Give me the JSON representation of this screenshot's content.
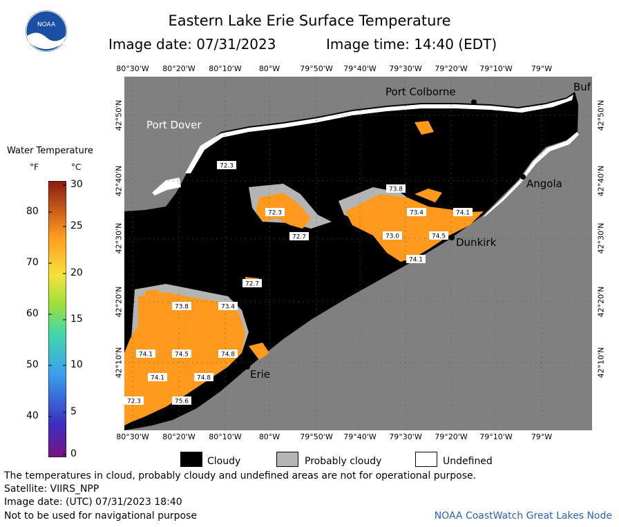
{
  "header": {
    "title": "Eastern Lake Erie Surface Temperature",
    "image_date": "Image date: 07/31/2023",
    "image_time": "Image time: 14:40 (EDT)",
    "logo_text": "NOAA"
  },
  "axes": {
    "lon_labels": [
      "80°30'W",
      "80°20'W",
      "80°10'W",
      "80°W",
      "79°50'W",
      "79°40'W",
      "79°30'W",
      "79°20'W",
      "79°10'W",
      "79°W"
    ],
    "lat_labels": [
      "42°50'N",
      "42°40'N",
      "42°30'N",
      "42°20'N",
      "42°10'N"
    ]
  },
  "legend": {
    "title": "Water Temperature",
    "unit_f": "°F",
    "unit_c": "°C",
    "f_ticks": [
      "80",
      "70",
      "60",
      "50",
      "40"
    ],
    "c_ticks": [
      "30",
      "25",
      "20",
      "15",
      "10",
      "5",
      "0"
    ],
    "keys": [
      "Cloudy",
      "Probably cloudy",
      "Undefined"
    ]
  },
  "places": [
    "Port Colborne",
    "Port Dover",
    "Buf",
    "Angola",
    "Dunkirk",
    "Erie"
  ],
  "temperature_labels": [
    "72.3",
    "73.8",
    "72.3",
    "72.7",
    "73.4",
    "74.1",
    "73.0",
    "74.5",
    "74.1",
    "72.7",
    "73.8",
    "73.4",
    "74.1",
    "74.5",
    "74.8",
    "74.1",
    "74.8",
    "72.3",
    "75.6"
  ],
  "footer": {
    "note": "The temperatures in cloud, probably cloudy and undefined areas are not for operational purpose.",
    "satellite": "Satellite: VIIRS_NPP",
    "utc_date": "Image date: (UTC) 07/31/2023  18:40",
    "nav_warning": "Not to be used for navigational purpose",
    "credit": "NOAA CoastWatch Great Lakes Node"
  },
  "colors": {
    "land": "#808080",
    "cloud": "#000000",
    "probably_cloudy": "#b4b4b4",
    "water_temp": "#ff9a1e",
    "undefined": "#ffffff"
  }
}
